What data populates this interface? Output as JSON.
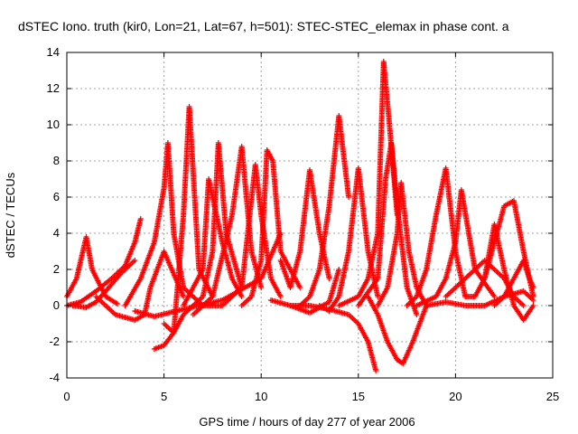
{
  "chart_data": {
    "type": "scatter",
    "title": "dSTEC Iono. truth (kir0, Lon=21, Lat=67, h=501): STEC-STEC_elemax in phase cont. a",
    "xlabel": "GPS time / hours of day 277 of year 2006",
    "ylabel": "dSTEC  / TECUs",
    "xlim": [
      0,
      25
    ],
    "ylim": [
      -4,
      14
    ],
    "xticks": [
      0,
      5,
      10,
      15,
      20,
      25
    ],
    "yticks": [
      -4,
      -2,
      0,
      2,
      4,
      6,
      8,
      10,
      12,
      14
    ],
    "grid": true,
    "marker": "+",
    "color": "#ff0000",
    "series": [
      {
        "x": [
          0.0,
          0.5,
          1.0,
          1.3,
          2.0,
          2.6
        ],
        "y": [
          0.5,
          1.5,
          3.8,
          2.0,
          0.5,
          0.1
        ]
      },
      {
        "x": [
          0.0,
          0.7,
          1.5,
          2.3,
          3.0,
          3.5,
          3.8
        ],
        "y": [
          0.0,
          0.2,
          0.8,
          1.5,
          2.2,
          3.5,
          4.8
        ]
      },
      {
        "x": [
          0.3,
          1.0,
          1.5,
          2.0,
          2.8,
          3.5
        ],
        "y": [
          0.0,
          -0.1,
          0.2,
          0.8,
          1.8,
          2.5
        ]
      },
      {
        "x": [
          1.5,
          2.5,
          3.5,
          4.0,
          4.3,
          5.0,
          6.0
        ],
        "y": [
          0.5,
          -0.5,
          -0.8,
          -0.5,
          1.0,
          3.0,
          0.5
        ]
      },
      {
        "x": [
          3.0,
          3.8,
          4.5,
          5.0,
          5.2,
          5.5,
          6.0,
          7.0
        ],
        "y": [
          0.0,
          1.5,
          3.5,
          6.5,
          9.0,
          4.0,
          1.0,
          0.0
        ]
      },
      {
        "x": [
          4.5,
          5.0,
          5.5,
          6.0,
          6.3,
          6.8,
          7.5
        ],
        "y": [
          -2.4,
          -2.2,
          -1.5,
          5.0,
          11.0,
          2.0,
          0.5
        ]
      },
      {
        "x": [
          5.0,
          5.5,
          6.0,
          7.0,
          7.5,
          7.8,
          8.2,
          9.0
        ],
        "y": [
          -1.0,
          -1.5,
          -0.5,
          0.5,
          3.0,
          9.0,
          4.0,
          1.0
        ]
      },
      {
        "x": [
          6.0,
          7.0,
          7.3,
          8.0,
          8.5,
          9.0
        ],
        "y": [
          0.0,
          2.0,
          7.0,
          3.5,
          1.5,
          0.5
        ]
      },
      {
        "x": [
          6.5,
          7.5,
          8.5,
          9.0,
          9.5,
          10.0
        ],
        "y": [
          -0.5,
          0.5,
          5.0,
          8.8,
          3.0,
          1.0
        ]
      },
      {
        "x": [
          7.0,
          8.0,
          9.0,
          9.7,
          10.0,
          10.5,
          11.0
        ],
        "y": [
          0.0,
          0.0,
          1.0,
          7.8,
          5.0,
          1.5,
          0.5
        ]
      },
      {
        "x": [
          9.0,
          9.5,
          10.0,
          10.3,
          10.6,
          11.0,
          12.0
        ],
        "y": [
          0.0,
          0.5,
          2.5,
          8.6,
          8.0,
          3.0,
          1.0
        ]
      },
      {
        "x": [
          3.5,
          4.5,
          6.0,
          8.0,
          10.0,
          11.0
        ],
        "y": [
          -0.3,
          -0.6,
          -0.2,
          0.3,
          1.5,
          4.0
        ]
      },
      {
        "x": [
          10.5,
          11.5,
          12.5,
          13.5,
          14.0
        ],
        "y": [
          0.3,
          0.0,
          -0.4,
          0.2,
          2.0
        ]
      },
      {
        "x": [
          11.0,
          11.5,
          12.0,
          12.5,
          13.0,
          13.5
        ],
        "y": [
          2.5,
          1.0,
          3.0,
          7.5,
          4.0,
          1.5
        ]
      },
      {
        "x": [
          12.0,
          12.5,
          13.0,
          13.5,
          14.0,
          14.5
        ],
        "y": [
          0.0,
          0.5,
          2.0,
          5.5,
          10.5,
          6.0
        ]
      },
      {
        "x": [
          13.0,
          13.5,
          14.0,
          14.5,
          15.0,
          15.5,
          16.0
        ],
        "y": [
          0.0,
          -0.3,
          0.5,
          3.0,
          7.6,
          3.0,
          0.5
        ]
      },
      {
        "x": [
          11.5,
          12.5,
          13.5,
          14.5,
          15.0,
          15.5,
          15.9
        ],
        "y": [
          0.0,
          0.0,
          -0.2,
          -0.5,
          -1.0,
          -2.0,
          -3.6
        ]
      },
      {
        "x": [
          14.0,
          15.0,
          15.5,
          16.0,
          16.3,
          16.6,
          17.0
        ],
        "y": [
          0.0,
          0.5,
          1.5,
          4.0,
          13.5,
          10.0,
          5.0
        ]
      },
      {
        "x": [
          15.0,
          16.0,
          16.4,
          16.7,
          17.0,
          17.5,
          18.0
        ],
        "y": [
          0.0,
          1.5,
          7.0,
          9.0,
          5.5,
          1.0,
          -0.5
        ]
      },
      {
        "x": [
          15.5,
          16.0,
          16.5,
          17.0,
          17.3,
          17.8,
          18.5
        ],
        "y": [
          0.5,
          -0.5,
          -2.0,
          -3.0,
          -3.2,
          -2.0,
          0.0
        ]
      },
      {
        "x": [
          16.0,
          16.5,
          17.0,
          17.2,
          17.6,
          18.0,
          18.5
        ],
        "y": [
          0.0,
          1.0,
          4.0,
          6.8,
          3.0,
          1.0,
          0.0
        ]
      },
      {
        "x": [
          17.5,
          18.0,
          18.5,
          19.0,
          19.5,
          20.0,
          20.5
        ],
        "y": [
          0.0,
          0.5,
          2.0,
          5.0,
          7.6,
          3.0,
          0.5
        ]
      },
      {
        "x": [
          18.0,
          19.0,
          19.5,
          20.0,
          20.3,
          21.0,
          22.0
        ],
        "y": [
          0.0,
          0.5,
          1.5,
          3.5,
          6.4,
          2.0,
          0.5
        ]
      },
      {
        "x": [
          19.5,
          20.5,
          21.5,
          22.0,
          22.5,
          23.0,
          23.5
        ],
        "y": [
          0.5,
          1.5,
          2.5,
          2.0,
          1.5,
          0.5,
          0.0
        ]
      },
      {
        "x": [
          20.5,
          21.0,
          21.5,
          22.0,
          22.5,
          23.0,
          23.5,
          24.0
        ],
        "y": [
          0.5,
          0.5,
          1.5,
          3.5,
          5.5,
          5.8,
          3.0,
          0.5
        ]
      },
      {
        "x": [
          21.5,
          22.0,
          22.5,
          23.0,
          23.5,
          24.0
        ],
        "y": [
          1.5,
          4.5,
          2.0,
          0.0,
          -0.8,
          0.0
        ]
      },
      {
        "x": [
          22.0,
          22.5,
          23.0,
          23.5,
          23.8,
          24.0
        ],
        "y": [
          0.0,
          0.5,
          1.5,
          2.5,
          1.5,
          1.0
        ]
      },
      {
        "x": [
          18.5,
          19.5,
          20.5,
          21.5,
          22.5,
          23.5,
          24.0
        ],
        "y": [
          0.0,
          0.2,
          0.0,
          0.0,
          0.5,
          0.8,
          0.3
        ]
      }
    ]
  }
}
